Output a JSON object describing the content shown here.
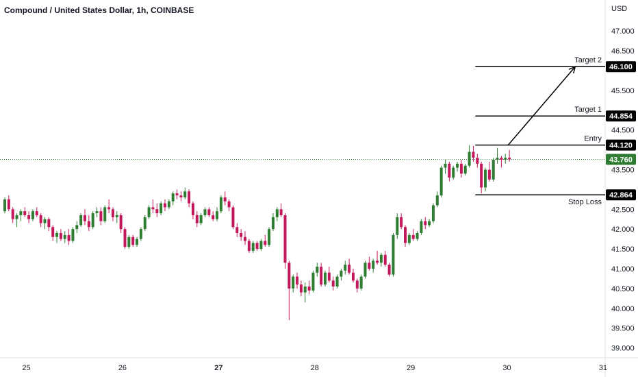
{
  "header": {
    "title": "Compound / United States Dollar, 1h, COINBASE",
    "currency": "USD"
  },
  "chart_data": {
    "type": "candlestick",
    "title": "Compound / United States Dollar, 1h, COINBASE",
    "ylabel": "USD",
    "ylim": [
      38.75,
      47.35
    ],
    "y_ticks": [
      "47.000",
      "46.500",
      "45.500",
      "44.500",
      "43.500",
      "42.500",
      "42.000",
      "41.500",
      "41.000",
      "40.500",
      "40.000",
      "39.500",
      "39.000"
    ],
    "x_ticks": [
      {
        "label": "25",
        "bold": false,
        "day": 25
      },
      {
        "label": "26",
        "bold": false,
        "day": 26
      },
      {
        "label": "27",
        "bold": true,
        "day": 27
      },
      {
        "label": "28",
        "bold": false,
        "day": 28
      },
      {
        "label": "29",
        "bold": false,
        "day": 29
      },
      {
        "label": "30",
        "bold": false,
        "day": 30
      },
      {
        "label": "31",
        "bold": false,
        "day": 31
      }
    ],
    "last_price": {
      "value": 43.76,
      "label": "43.760",
      "color": "#2e7d32"
    },
    "levels": [
      {
        "name": "Target 2",
        "label": "46.100",
        "value": 46.1
      },
      {
        "name": "Target 1",
        "label": "44.854",
        "value": 44.854
      },
      {
        "name": "Entry",
        "label": "44.120",
        "value": 44.12
      },
      {
        "name": "Stop Loss",
        "label": "42.864",
        "value": 42.864
      }
    ],
    "projection": {
      "from_value": 44.12,
      "to_value": 46.1
    },
    "colors": {
      "up": "#2e7d32",
      "down": "#c2185b",
      "level": "#000000",
      "grid": "#f0f3fa"
    },
    "candles": [
      [
        42.45,
        42.8,
        42.4,
        42.75
      ],
      [
        42.75,
        42.85,
        42.45,
        42.5
      ],
      [
        42.5,
        42.55,
        42.15,
        42.25
      ],
      [
        42.25,
        42.4,
        42.05,
        42.35
      ],
      [
        42.35,
        42.5,
        42.2,
        42.45
      ],
      [
        42.45,
        42.55,
        42.3,
        42.35
      ],
      [
        42.35,
        42.45,
        42.15,
        42.25
      ],
      [
        42.25,
        42.5,
        42.2,
        42.45
      ],
      [
        42.45,
        42.55,
        42.3,
        42.35
      ],
      [
        42.35,
        42.4,
        42.05,
        42.15
      ],
      [
        42.15,
        42.3,
        42.0,
        42.25
      ],
      [
        42.25,
        42.3,
        41.95,
        42.05
      ],
      [
        42.05,
        42.1,
        41.7,
        41.8
      ],
      [
        41.8,
        41.95,
        41.65,
        41.9
      ],
      [
        41.9,
        42.0,
        41.7,
        41.75
      ],
      [
        41.75,
        41.95,
        41.65,
        41.85
      ],
      [
        41.85,
        42.0,
        41.6,
        41.7
      ],
      [
        41.7,
        42.05,
        41.65,
        42.0
      ],
      [
        42.0,
        42.2,
        41.9,
        42.1
      ],
      [
        42.1,
        42.4,
        42.05,
        42.35
      ],
      [
        42.35,
        42.5,
        42.1,
        42.2
      ],
      [
        42.2,
        42.35,
        41.95,
        42.05
      ],
      [
        42.05,
        42.45,
        42.0,
        42.4
      ],
      [
        42.4,
        42.55,
        42.3,
        42.45
      ],
      [
        42.45,
        42.55,
        42.1,
        42.2
      ],
      [
        42.2,
        42.6,
        42.15,
        42.55
      ],
      [
        42.55,
        42.75,
        42.4,
        42.5
      ],
      [
        42.5,
        42.55,
        42.2,
        42.3
      ],
      [
        42.3,
        42.45,
        42.15,
        42.35
      ],
      [
        42.35,
        42.4,
        41.9,
        42.0
      ],
      [
        42.0,
        42.05,
        41.5,
        41.55
      ],
      [
        41.55,
        41.85,
        41.5,
        41.8
      ],
      [
        41.8,
        41.85,
        41.55,
        41.6
      ],
      [
        41.6,
        41.8,
        41.55,
        41.75
      ],
      [
        41.75,
        42.05,
        41.7,
        42.0
      ],
      [
        42.0,
        42.35,
        41.95,
        42.3
      ],
      [
        42.3,
        42.6,
        42.25,
        42.55
      ],
      [
        42.55,
        42.75,
        42.4,
        42.5
      ],
      [
        42.5,
        42.65,
        42.3,
        42.4
      ],
      [
        42.4,
        42.7,
        42.35,
        42.65
      ],
      [
        42.65,
        42.75,
        42.45,
        42.55
      ],
      [
        42.55,
        42.75,
        42.5,
        42.7
      ],
      [
        42.7,
        42.95,
        42.6,
        42.9
      ],
      [
        42.9,
        43.0,
        42.75,
        42.85
      ],
      [
        42.85,
        42.95,
        42.7,
        42.8
      ],
      [
        42.8,
        43.05,
        42.75,
        42.95
      ],
      [
        42.95,
        43.0,
        42.55,
        42.65
      ],
      [
        42.65,
        42.7,
        42.25,
        42.35
      ],
      [
        42.35,
        42.45,
        42.05,
        42.15
      ],
      [
        42.15,
        42.4,
        42.1,
        42.35
      ],
      [
        42.35,
        42.55,
        42.3,
        42.5
      ],
      [
        42.5,
        42.55,
        42.3,
        42.35
      ],
      [
        42.35,
        42.45,
        42.2,
        42.25
      ],
      [
        42.25,
        42.55,
        42.2,
        42.45
      ],
      [
        42.45,
        42.85,
        42.4,
        42.8
      ],
      [
        42.8,
        42.95,
        42.6,
        42.7
      ],
      [
        42.7,
        42.75,
        42.45,
        42.55
      ],
      [
        42.55,
        42.6,
        42.0,
        42.05
      ],
      [
        42.05,
        42.15,
        41.8,
        41.9
      ],
      [
        41.9,
        42.0,
        41.7,
        41.8
      ],
      [
        41.8,
        41.95,
        41.6,
        41.7
      ],
      [
        41.7,
        41.75,
        41.4,
        41.45
      ],
      [
        41.45,
        41.7,
        41.4,
        41.65
      ],
      [
        41.65,
        41.7,
        41.45,
        41.5
      ],
      [
        41.5,
        41.75,
        41.45,
        41.7
      ],
      [
        41.7,
        41.85,
        41.55,
        41.6
      ],
      [
        41.6,
        42.05,
        41.55,
        42.0
      ],
      [
        42.0,
        42.4,
        41.95,
        42.3
      ],
      [
        42.3,
        42.55,
        42.2,
        42.5
      ],
      [
        42.5,
        42.65,
        42.3,
        42.35
      ],
      [
        42.35,
        42.4,
        41.0,
        41.15
      ],
      [
        41.15,
        41.2,
        39.7,
        40.5
      ],
      [
        40.5,
        40.85,
        40.4,
        40.8
      ],
      [
        40.8,
        40.9,
        40.5,
        40.6
      ],
      [
        40.6,
        40.7,
        40.3,
        40.4
      ],
      [
        40.4,
        40.65,
        40.15,
        40.55
      ],
      [
        40.55,
        40.7,
        40.35,
        40.45
      ],
      [
        40.45,
        40.95,
        40.4,
        40.9
      ],
      [
        40.9,
        41.15,
        40.8,
        41.05
      ],
      [
        41.05,
        41.15,
        40.55,
        40.6
      ],
      [
        40.6,
        40.95,
        40.55,
        40.9
      ],
      [
        40.9,
        41.05,
        40.65,
        40.7
      ],
      [
        40.7,
        40.8,
        40.45,
        40.55
      ],
      [
        40.55,
        40.85,
        40.5,
        40.8
      ],
      [
        40.8,
        41.0,
        40.7,
        40.95
      ],
      [
        40.95,
        41.2,
        40.85,
        41.1
      ],
      [
        41.1,
        41.25,
        40.85,
        40.9
      ],
      [
        40.9,
        41.0,
        40.65,
        40.7
      ],
      [
        40.7,
        40.75,
        40.4,
        40.5
      ],
      [
        40.5,
        40.85,
        40.45,
        40.8
      ],
      [
        40.8,
        41.2,
        40.75,
        41.15
      ],
      [
        41.15,
        41.3,
        40.95,
        41.0
      ],
      [
        41.0,
        41.25,
        40.9,
        41.2
      ],
      [
        41.2,
        41.45,
        41.1,
        41.15
      ],
      [
        41.15,
        41.4,
        41.05,
        41.35
      ],
      [
        41.35,
        41.45,
        41.05,
        41.1
      ],
      [
        41.1,
        41.15,
        40.8,
        40.85
      ],
      [
        40.85,
        41.9,
        40.8,
        41.85
      ],
      [
        41.85,
        42.4,
        41.75,
        42.3
      ],
      [
        42.3,
        42.4,
        42.0,
        42.05
      ],
      [
        42.05,
        42.1,
        41.55,
        41.65
      ],
      [
        41.65,
        41.9,
        41.6,
        41.85
      ],
      [
        41.85,
        42.0,
        41.7,
        41.75
      ],
      [
        41.75,
        41.95,
        41.7,
        41.9
      ],
      [
        41.9,
        42.25,
        41.85,
        42.2
      ],
      [
        42.2,
        42.3,
        42.0,
        42.1
      ],
      [
        42.1,
        42.25,
        42.05,
        42.2
      ],
      [
        42.2,
        42.65,
        42.15,
        42.6
      ],
      [
        42.6,
        42.95,
        42.55,
        42.85
      ],
      [
        42.85,
        43.6,
        42.8,
        43.55
      ],
      [
        43.55,
        43.75,
        43.4,
        43.65
      ],
      [
        43.65,
        43.7,
        43.2,
        43.3
      ],
      [
        43.3,
        43.6,
        43.25,
        43.55
      ],
      [
        43.55,
        43.7,
        43.45,
        43.65
      ],
      [
        43.65,
        43.75,
        43.3,
        43.4
      ],
      [
        43.4,
        43.65,
        43.35,
        43.6
      ],
      [
        43.6,
        44.12,
        43.55,
        43.95
      ],
      [
        43.95,
        44.1,
        43.7,
        43.8
      ],
      [
        43.8,
        43.9,
        43.55,
        43.65
      ],
      [
        43.65,
        43.7,
        42.9,
        43.05
      ],
      [
        43.05,
        43.55,
        42.95,
        43.5
      ],
      [
        43.5,
        43.7,
        43.2,
        43.25
      ],
      [
        43.25,
        43.8,
        43.2,
        43.75
      ],
      [
        43.75,
        44.05,
        43.65,
        43.8
      ],
      [
        43.8,
        43.85,
        43.55,
        43.75
      ],
      [
        43.75,
        43.9,
        43.65,
        43.8
      ],
      [
        43.8,
        44.0,
        43.7,
        43.76
      ]
    ]
  }
}
